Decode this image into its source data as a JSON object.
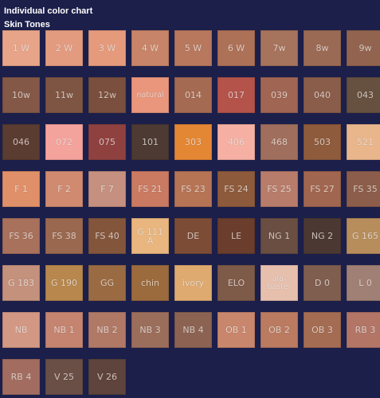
{
  "header": {
    "title": "Individual color chart",
    "subtitle": "Skin Tones"
  },
  "swatches": [
    {
      "label": "1 W",
      "color": "#e8a489"
    },
    {
      "label": "2 W",
      "color": "#e39b80"
    },
    {
      "label": "3 W",
      "color": "#e59a7c"
    },
    {
      "label": "4 W",
      "color": "#c88468"
    },
    {
      "label": "5 W",
      "color": "#b8785e"
    },
    {
      "label": "6 W",
      "color": "#ad7157"
    },
    {
      "label": "7w",
      "color": "#a6735d"
    },
    {
      "label": "8w",
      "color": "#9b6a55"
    },
    {
      "label": "9w",
      "color": "#92644f"
    },
    {
      "label": "10w",
      "color": "#835847"
    },
    {
      "label": "11w",
      "color": "#7e5543"
    },
    {
      "label": "12w",
      "color": "#7a4f3d"
    },
    {
      "label": "natural",
      "color": "#e9967c"
    },
    {
      "label": "014",
      "color": "#a56a52"
    },
    {
      "label": "017",
      "color": "#b3534a"
    },
    {
      "label": "039",
      "color": "#a06553"
    },
    {
      "label": "040",
      "color": "#8a5c4a"
    },
    {
      "label": "043",
      "color": "#66503f"
    },
    {
      "label": "046",
      "color": "#5b3c31"
    },
    {
      "label": "072",
      "color": "#f4a29c"
    },
    {
      "label": "075",
      "color": "#8f4140"
    },
    {
      "label": "101",
      "color": "#4c3a33"
    },
    {
      "label": "303",
      "color": "#e48734"
    },
    {
      "label": "406",
      "color": "#f5b0a3"
    },
    {
      "label": "468",
      "color": "#9f6e5c"
    },
    {
      "label": "503",
      "color": "#8e5b3c"
    },
    {
      "label": "521",
      "color": "#e9b68b"
    },
    {
      "label": "F 1",
      "color": "#e09068"
    },
    {
      "label": "F 2",
      "color": "#d08a70"
    },
    {
      "label": "F 7",
      "color": "#c5907f"
    },
    {
      "label": "FS 21",
      "color": "#c97a61"
    },
    {
      "label": "FS 23",
      "color": "#b67455"
    },
    {
      "label": "FS 24",
      "color": "#8d5a3c"
    },
    {
      "label": "FS 25",
      "color": "#b87c6a"
    },
    {
      "label": "FS 27",
      "color": "#a1664f"
    },
    {
      "label": "FS 35",
      "color": "#8c5d4a"
    },
    {
      "label": "FS 36",
      "color": "#a8715c"
    },
    {
      "label": "FS 38",
      "color": "#9a684f"
    },
    {
      "label": "FS 40",
      "color": "#83563c"
    },
    {
      "label": "G 111\nA",
      "color": "#e8b67e"
    },
    {
      "label": "DE",
      "color": "#7c4c36"
    },
    {
      "label": "LE",
      "color": "#6a3d2c"
    },
    {
      "label": "NG 1",
      "color": "#6a4e42"
    },
    {
      "label": "NG 2",
      "color": "#4b3832"
    },
    {
      "label": "G 165",
      "color": "#b78d5b"
    },
    {
      "label": "G 183",
      "color": "#c4917c"
    },
    {
      "label": "G 190",
      "color": "#b7874d"
    },
    {
      "label": "GG",
      "color": "#9a6b42"
    },
    {
      "label": "chin",
      "color": "#9b6b3d"
    },
    {
      "label": "ivory",
      "color": "#deaa6f"
    },
    {
      "label": "ELO",
      "color": "#7e5a48"
    },
    {
      "label": "ala-\nbaster",
      "color": "#e7bfad"
    },
    {
      "label": "D 0",
      "color": "#7f5e50"
    },
    {
      "label": "L 0",
      "color": "#a07f74"
    },
    {
      "label": "NB",
      "color": "#d29884"
    },
    {
      "label": "NB 1",
      "color": "#c48470"
    },
    {
      "label": "NB 2",
      "color": "#b07966"
    },
    {
      "label": "NB 3",
      "color": "#9b6e5c"
    },
    {
      "label": "NB 4",
      "color": "#8c6352"
    },
    {
      "label": "OB 1",
      "color": "#c8866c"
    },
    {
      "label": "OB 2",
      "color": "#ba7b61"
    },
    {
      "label": "OB 3",
      "color": "#a46c52"
    },
    {
      "label": "RB 3",
      "color": "#b27566"
    },
    {
      "label": "RB 4",
      "color": "#a26d60"
    },
    {
      "label": "V 25",
      "color": "#6a4f47"
    },
    {
      "label": "V 26",
      "color": "#5e443c"
    }
  ]
}
